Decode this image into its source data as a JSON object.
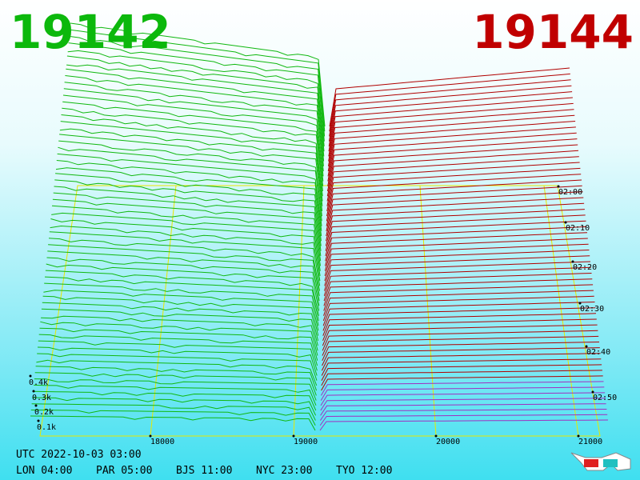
{
  "header": {
    "bid": "19142",
    "ask": "19144"
  },
  "price_axis": {
    "ticks": [
      "18000",
      "19000",
      "20000",
      "21000"
    ]
  },
  "depth_axis": {
    "ticks": [
      "0.1k",
      "0.2k",
      "0.3k",
      "0.4k"
    ]
  },
  "time_axis": {
    "ticks": [
      "02:00",
      "02:10",
      "02:20",
      "02:30",
      "02:40",
      "02:50"
    ]
  },
  "footer": {
    "utc": "UTC 2022-10-03 03:00",
    "zones": [
      "LON 04:00",
      "PAR 05:00",
      "BJS 11:00",
      "NYC 23:00",
      "TYO 12:00"
    ]
  }
}
